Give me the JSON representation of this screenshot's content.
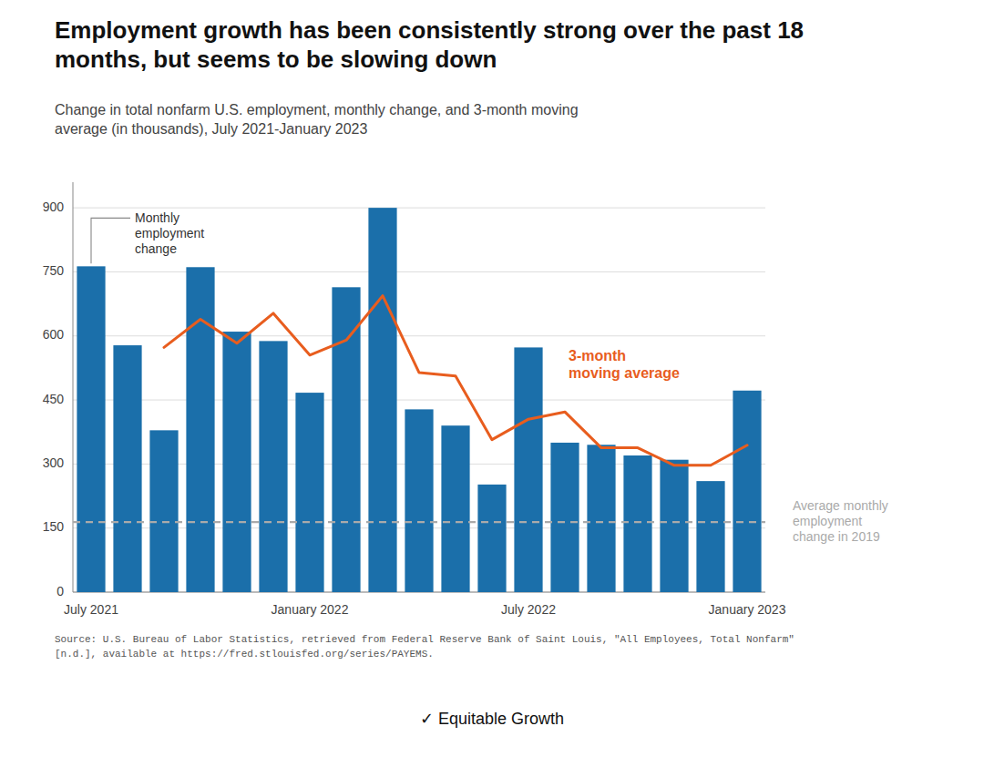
{
  "chart_data": {
    "type": "bar",
    "title": "Employment growth has been consistently strong over the past 18\nmonths, but seems to be slowing down",
    "subtitle": "Change in total nonfarm U.S. employment, monthly change, and 3-month moving\naverage (in thousands), July 2021-January 2023",
    "source": "Source: U.S. Bureau of Labor Statistics, retrieved from Federal Reserve Bank of Saint Louis, \"All Employees, Total Nonfarm\"\n[n.d.], available at https://fred.stlouisfed.org/series/PAYEMS.",
    "footer": "✓  Equitable Growth",
    "categories": [
      "July 2021",
      null,
      null,
      null,
      null,
      null,
      "January 2022",
      null,
      null,
      null,
      null,
      null,
      "July 2022",
      null,
      null,
      null,
      null,
      null,
      "January 2023"
    ],
    "series": [
      {
        "type": "bar",
        "color": "#1b6faa",
        "values": [
          763,
          578,
          379,
          761,
          610,
          588,
          467,
          714,
          900,
          428,
          390,
          252,
          573,
          350,
          345,
          320,
          310,
          260,
          472
        ]
      },
      {
        "type": "line",
        "color": "#e85d1e",
        "values": [
          null,
          null,
          573,
          639,
          583,
          653,
          555,
          590,
          694,
          514,
          506,
          357,
          405,
          422,
          338,
          338,
          297,
          297,
          344
        ]
      }
    ],
    "reference_lines": [
      {
        "value": 164,
        "color": "#aaaaaa",
        "line_style": "dashed",
        "label": "Average monthly\nemployment\nchange in 2019"
      }
    ],
    "annotations": [
      {
        "text": "Monthly\nemployment\nchange"
      },
      {
        "text": "3-month\nmoving average"
      }
    ],
    "ylim": [
      0,
      960
    ],
    "yticks": [
      0,
      150,
      300,
      450,
      600,
      750,
      900
    ],
    "grid": true
  }
}
